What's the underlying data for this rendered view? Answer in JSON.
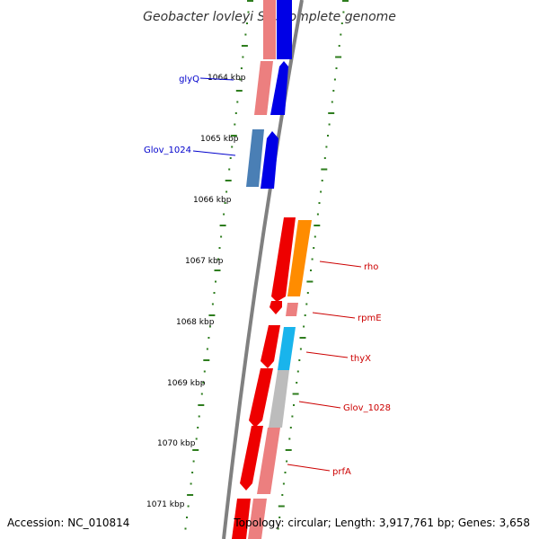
{
  "title": "Geobacter lovleyi SZ, complete genome",
  "footer": {
    "accession": "Accession: NC_010814",
    "topology": "Topology: circular; Length: 3,917,761 bp; Genes: 3,658"
  },
  "colors": {
    "backbone": "#808080",
    "gc_ticks": "#2e7d1e",
    "label_blue": "#0000cc",
    "label_red": "#cc0000",
    "forward_blue": "#0000e6",
    "forward_steel": "#4a7fb5",
    "reverse_red": "#ee0000",
    "reverse_pink": "#ec7f7f",
    "orange": "#ff8c00",
    "cyan": "#19b4ec",
    "gray": "#bcbcbc"
  },
  "kbp_ticks": [
    "1064 kbp",
    "1065 kbp",
    "1066 kbp",
    "1067 kbp",
    "1068 kbp",
    "1069 kbp",
    "1070 kbp",
    "1071 kbp"
  ],
  "gene_labels": [
    {
      "name": "glyQ",
      "color": "blue"
    },
    {
      "name": "Glov_1024",
      "color": "blue"
    },
    {
      "name": "rho",
      "color": "red"
    },
    {
      "name": "rpmE",
      "color": "red"
    },
    {
      "name": "thyX",
      "color": "red"
    },
    {
      "name": "Glov_1028",
      "color": "red"
    },
    {
      "name": "prfA",
      "color": "red"
    }
  ]
}
